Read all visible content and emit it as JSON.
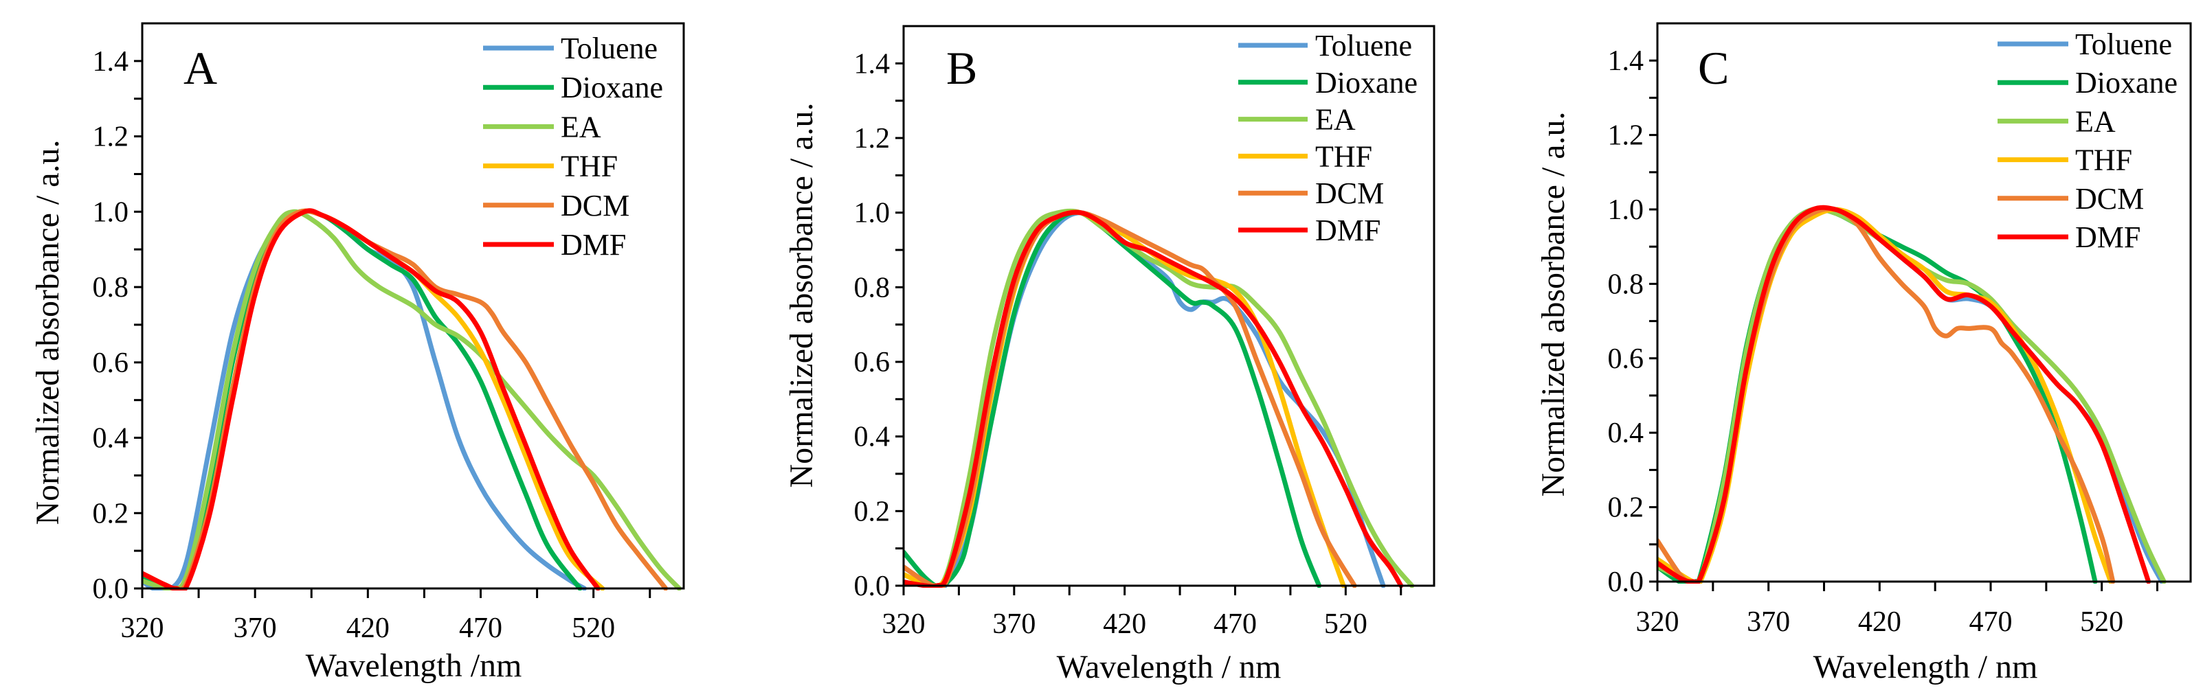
{
  "colors": {
    "Toluene": "#5b9bd5",
    "Dioxane": "#00b050",
    "EA": "#92d050",
    "THF": "#ffc000",
    "DCM": "#ed7d31",
    "DMF": "#ff0000"
  },
  "chart_data": [
    {
      "type": "line",
      "panel_label": "A",
      "xlabel": "Wavelength /nm",
      "ylabel": "Normalized absorbance / a.u.",
      "xlim": [
        320,
        560
      ],
      "ylim": [
        0,
        1.5
      ],
      "xticks": [
        320,
        370,
        420,
        470,
        520
      ],
      "yticks": [
        "0.0",
        "0.2",
        "0.4",
        "0.6",
        "0.8",
        "1.0",
        "1.2",
        "1.4"
      ],
      "legend": "top-right",
      "series": [
        {
          "name": "Toluene",
          "x": [
            320,
            325,
            333,
            340,
            350,
            360,
            370,
            380,
            390,
            400,
            410,
            420,
            430,
            440,
            450,
            460,
            470,
            480,
            490,
            500,
            510,
            516
          ],
          "y": [
            0.02,
            0,
            0,
            0.08,
            0.38,
            0.68,
            0.86,
            0.96,
            1.0,
            0.99,
            0.95,
            0.9,
            0.87,
            0.8,
            0.6,
            0.4,
            0.27,
            0.18,
            0.11,
            0.06,
            0.02,
            0
          ]
        },
        {
          "name": "Dioxane",
          "x": [
            320,
            330,
            335,
            340,
            350,
            360,
            370,
            380,
            390,
            400,
            410,
            420,
            430,
            440,
            450,
            460,
            470,
            480,
            490,
            500,
            514
          ],
          "y": [
            0.03,
            0.01,
            0,
            0.03,
            0.28,
            0.6,
            0.84,
            0.96,
            1.0,
            0.99,
            0.95,
            0.9,
            0.86,
            0.82,
            0.72,
            0.65,
            0.55,
            0.4,
            0.25,
            0.11,
            0
          ]
        },
        {
          "name": "EA",
          "x": [
            320,
            333,
            340,
            350,
            360,
            370,
            380,
            387,
            395,
            405,
            415,
            425,
            440,
            450,
            460,
            470,
            480,
            490,
            500,
            510,
            520,
            530,
            540,
            550,
            558
          ],
          "y": [
            0.02,
            0,
            0.04,
            0.3,
            0.62,
            0.85,
            0.97,
            1.0,
            0.98,
            0.93,
            0.85,
            0.8,
            0.75,
            0.7,
            0.67,
            0.62,
            0.55,
            0.48,
            0.41,
            0.35,
            0.3,
            0.22,
            0.13,
            0.05,
            0
          ]
        },
        {
          "name": "THF",
          "x": [
            320,
            330,
            335,
            340,
            350,
            360,
            370,
            380,
            390,
            400,
            410,
            420,
            430,
            440,
            450,
            460,
            470,
            480,
            490,
            500,
            510,
            524
          ],
          "y": [
            0.04,
            0.01,
            0,
            0.02,
            0.22,
            0.53,
            0.8,
            0.95,
            1.0,
            0.99,
            0.96,
            0.92,
            0.88,
            0.84,
            0.78,
            0.72,
            0.63,
            0.5,
            0.35,
            0.2,
            0.08,
            0
          ]
        },
        {
          "name": "DCM",
          "x": [
            320,
            330,
            335,
            340,
            350,
            360,
            370,
            380,
            390,
            400,
            410,
            420,
            430,
            440,
            450,
            460,
            470,
            475,
            480,
            490,
            500,
            510,
            520,
            530,
            540,
            552
          ],
          "y": [
            0.04,
            0.01,
            0,
            0.02,
            0.22,
            0.53,
            0.8,
            0.95,
            1.0,
            0.99,
            0.96,
            0.92,
            0.89,
            0.86,
            0.8,
            0.78,
            0.76,
            0.73,
            0.68,
            0.6,
            0.49,
            0.38,
            0.28,
            0.17,
            0.09,
            0
          ]
        },
        {
          "name": "DMF",
          "x": [
            320,
            330,
            335,
            340,
            350,
            360,
            370,
            380,
            392,
            400,
            410,
            420,
            430,
            440,
            450,
            460,
            470,
            480,
            490,
            500,
            510,
            522
          ],
          "y": [
            0.04,
            0.01,
            0,
            0.01,
            0.2,
            0.5,
            0.78,
            0.94,
            1.0,
            0.99,
            0.96,
            0.92,
            0.88,
            0.84,
            0.79,
            0.76,
            0.68,
            0.53,
            0.38,
            0.23,
            0.1,
            0
          ]
        }
      ]
    },
    {
      "type": "line",
      "panel_label": "B",
      "xlabel": "Wavelength  / nm",
      "ylabel": "Normalized  absorbance / a.u.",
      "xlim": [
        320,
        560
      ],
      "ylim": [
        0,
        1.5
      ],
      "xticks": [
        320,
        370,
        420,
        470,
        520
      ],
      "yticks": [
        "0.0",
        "0.2",
        "0.4",
        "0.6",
        "0.8",
        "1.0",
        "1.2",
        "1.4"
      ],
      "legend": "top-right",
      "series": [
        {
          "name": "Toluene",
          "x": [
            320,
            330,
            335,
            340,
            350,
            360,
            370,
            380,
            390,
            400,
            410,
            420,
            430,
            440,
            445,
            450,
            455,
            460,
            465,
            470,
            480,
            490,
            500,
            510,
            520,
            530,
            537
          ],
          "y": [
            0.05,
            0.01,
            0,
            0.01,
            0.15,
            0.45,
            0.72,
            0.88,
            0.97,
            1.0,
            0.97,
            0.92,
            0.87,
            0.82,
            0.76,
            0.74,
            0.76,
            0.76,
            0.77,
            0.75,
            0.67,
            0.55,
            0.48,
            0.41,
            0.3,
            0.12,
            0
          ]
        },
        {
          "name": "Dioxane",
          "x": [
            320,
            330,
            337,
            345,
            350,
            360,
            370,
            380,
            390,
            400,
            410,
            420,
            430,
            440,
            450,
            455,
            460,
            470,
            480,
            490,
            500,
            508
          ],
          "y": [
            0.09,
            0.02,
            0,
            0.05,
            0.15,
            0.45,
            0.73,
            0.9,
            0.98,
            1.0,
            0.96,
            0.91,
            0.86,
            0.81,
            0.76,
            0.76,
            0.75,
            0.69,
            0.53,
            0.33,
            0.12,
            0
          ]
        },
        {
          "name": "EA",
          "x": [
            320,
            333,
            340,
            350,
            360,
            370,
            380,
            390,
            400,
            410,
            420,
            430,
            440,
            450,
            460,
            470,
            480,
            490,
            500,
            510,
            520,
            530,
            540,
            550
          ],
          "y": [
            0.03,
            0,
            0.04,
            0.3,
            0.64,
            0.86,
            0.97,
            1.0,
            1.0,
            0.96,
            0.92,
            0.88,
            0.85,
            0.81,
            0.8,
            0.8,
            0.75,
            0.68,
            0.56,
            0.44,
            0.3,
            0.17,
            0.07,
            0
          ]
        },
        {
          "name": "THF",
          "x": [
            320,
            333,
            340,
            350,
            360,
            370,
            380,
            390,
            400,
            410,
            420,
            430,
            440,
            450,
            460,
            470,
            480,
            490,
            500,
            510,
            519
          ],
          "y": [
            0.03,
            0,
            0.03,
            0.2,
            0.52,
            0.79,
            0.94,
            0.99,
            1.0,
            0.97,
            0.94,
            0.9,
            0.86,
            0.83,
            0.82,
            0.79,
            0.7,
            0.53,
            0.33,
            0.15,
            0
          ]
        },
        {
          "name": "DCM",
          "x": [
            320,
            330,
            335,
            340,
            350,
            360,
            370,
            380,
            390,
            400,
            410,
            420,
            430,
            440,
            450,
            455,
            460,
            470,
            480,
            490,
            500,
            510,
            524
          ],
          "y": [
            0.05,
            0.01,
            0,
            0.02,
            0.22,
            0.54,
            0.8,
            0.94,
            0.99,
            1.0,
            0.98,
            0.95,
            0.92,
            0.89,
            0.86,
            0.85,
            0.82,
            0.75,
            0.6,
            0.45,
            0.3,
            0.14,
            0
          ]
        },
        {
          "name": "DMF",
          "x": [
            320,
            330,
            335,
            340,
            350,
            360,
            370,
            380,
            390,
            400,
            410,
            420,
            430,
            440,
            450,
            460,
            470,
            480,
            490,
            500,
            510,
            520,
            530,
            540,
            545
          ],
          "y": [
            0.01,
            0,
            0,
            0.03,
            0.25,
            0.57,
            0.82,
            0.95,
            0.99,
            1.0,
            0.97,
            0.92,
            0.9,
            0.87,
            0.84,
            0.81,
            0.77,
            0.7,
            0.6,
            0.48,
            0.38,
            0.26,
            0.13,
            0.05,
            0
          ]
        }
      ]
    },
    {
      "type": "line",
      "panel_label": "C",
      "xlabel": "Wavelength  / nm",
      "ylabel": "Normalized  absorbance / a.u.",
      "xlim": [
        320,
        560
      ],
      "ylim": [
        0,
        1.5
      ],
      "xticks": [
        320,
        370,
        420,
        470,
        520
      ],
      "yticks": [
        "0.0",
        "0.2",
        "0.4",
        "0.6",
        "0.8",
        "1.0",
        "1.2",
        "1.4"
      ],
      "legend": "top-right",
      "series": [
        {
          "name": "Toluene",
          "x": [
            320,
            335,
            340,
            350,
            360,
            370,
            380,
            390,
            400,
            410,
            420,
            430,
            440,
            450,
            460,
            470,
            480,
            490,
            500,
            510,
            520,
            530,
            540,
            547
          ],
          "y": [
            0.04,
            0,
            0.02,
            0.25,
            0.6,
            0.83,
            0.95,
            0.99,
            1.0,
            0.97,
            0.92,
            0.87,
            0.82,
            0.76,
            0.76,
            0.74,
            0.67,
            0.6,
            0.53,
            0.47,
            0.38,
            0.23,
            0.08,
            0
          ]
        },
        {
          "name": "Dioxane",
          "x": [
            320,
            330,
            337,
            340,
            350,
            360,
            370,
            380,
            390,
            400,
            410,
            420,
            430,
            440,
            450,
            460,
            470,
            480,
            490,
            500,
            510,
            517
          ],
          "y": [
            0.04,
            0,
            0,
            0.03,
            0.28,
            0.63,
            0.85,
            0.96,
            1.0,
            0.99,
            0.96,
            0.93,
            0.9,
            0.87,
            0.83,
            0.8,
            0.75,
            0.66,
            0.55,
            0.4,
            0.18,
            0
          ]
        },
        {
          "name": "EA",
          "x": [
            320,
            335,
            340,
            350,
            360,
            370,
            380,
            390,
            400,
            410,
            420,
            430,
            440,
            450,
            460,
            470,
            480,
            490,
            500,
            510,
            520,
            530,
            540,
            548
          ],
          "y": [
            0.04,
            0,
            0.02,
            0.27,
            0.62,
            0.85,
            0.96,
            1.0,
            0.99,
            0.96,
            0.92,
            0.88,
            0.84,
            0.81,
            0.8,
            0.76,
            0.69,
            0.63,
            0.57,
            0.5,
            0.4,
            0.25,
            0.1,
            0
          ]
        },
        {
          "name": "THF",
          "x": [
            320,
            336,
            340,
            350,
            360,
            370,
            380,
            390,
            400,
            410,
            420,
            430,
            440,
            450,
            460,
            470,
            480,
            490,
            500,
            510,
            517,
            524
          ],
          "y": [
            0.06,
            0,
            0.01,
            0.2,
            0.54,
            0.79,
            0.93,
            0.98,
            1.0,
            0.98,
            0.93,
            0.88,
            0.84,
            0.78,
            0.77,
            0.75,
            0.68,
            0.58,
            0.44,
            0.26,
            0.12,
            0
          ]
        },
        {
          "name": "DCM",
          "x": [
            320,
            330,
            335,
            340,
            350,
            360,
            370,
            380,
            390,
            400,
            410,
            420,
            430,
            440,
            445,
            450,
            455,
            460,
            470,
            475,
            480,
            490,
            500,
            510,
            520,
            525
          ],
          "y": [
            0.11,
            0.02,
            0,
            0.02,
            0.22,
            0.57,
            0.8,
            0.94,
            0.99,
            1.0,
            0.96,
            0.87,
            0.8,
            0.74,
            0.68,
            0.66,
            0.68,
            0.68,
            0.68,
            0.64,
            0.61,
            0.52,
            0.4,
            0.28,
            0.12,
            0
          ]
        },
        {
          "name": "DMF",
          "x": [
            320,
            330,
            336,
            340,
            350,
            360,
            370,
            380,
            390,
            400,
            410,
            420,
            430,
            440,
            450,
            460,
            470,
            480,
            490,
            500,
            510,
            520,
            530,
            541
          ],
          "y": [
            0.05,
            0.01,
            0,
            0.02,
            0.22,
            0.57,
            0.82,
            0.95,
            1.0,
            1.0,
            0.97,
            0.92,
            0.87,
            0.82,
            0.76,
            0.77,
            0.74,
            0.67,
            0.6,
            0.53,
            0.47,
            0.37,
            0.2,
            0
          ]
        }
      ]
    }
  ]
}
